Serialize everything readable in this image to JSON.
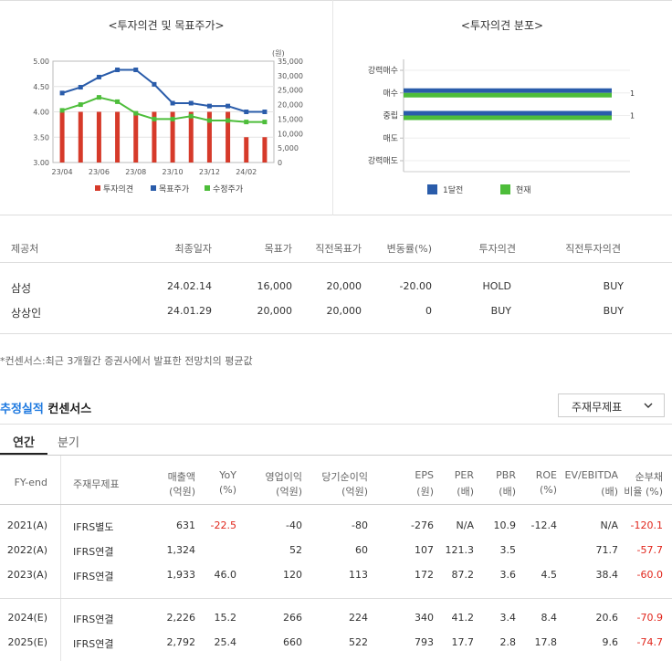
{
  "left_panel": {
    "title": "<투자의견 및 목표주가>"
  },
  "right_panel": {
    "title": "<투자의견 분포>"
  },
  "chart_data": [
    {
      "type": "bar+line",
      "title": "<투자의견 및 목표주가>",
      "categories": [
        "23/04",
        "",
        "23/06",
        "",
        "23/08",
        "",
        "23/10",
        "",
        "23/12",
        "",
        "24/02",
        ""
      ],
      "x_tick_labels": [
        "23/04",
        "23/06",
        "23/08",
        "23/10",
        "23/12",
        "24/02"
      ],
      "left_axis": {
        "ticks": [
          "5.00",
          "4.50",
          "4.00",
          "3.50",
          "3.00"
        ],
        "ylim": [
          3,
          5
        ]
      },
      "right_axis": {
        "unit": "(원)",
        "ticks": [
          "35,000",
          "30,000",
          "25,000",
          "20,000",
          "15,000",
          "10,000",
          "5,000",
          "0"
        ],
        "ylim": [
          0,
          35000
        ]
      },
      "series": [
        {
          "name": "투자의견",
          "kind": "bar",
          "axis": "left",
          "color": "#d63a2a",
          "values": [
            4,
            4,
            4,
            4,
            4,
            4,
            4,
            4,
            4,
            4,
            3.5,
            3.5
          ]
        },
        {
          "name": "목표주가",
          "kind": "line",
          "axis": "right",
          "color": "#2a5caa",
          "values": [
            24000,
            26000,
            29500,
            32000,
            32000,
            27000,
            20500,
            20500,
            19500,
            19500,
            17500,
            17500
          ]
        },
        {
          "name": "수정주가",
          "kind": "line",
          "axis": "right",
          "color": "#4dbd3a",
          "values": [
            18000,
            20000,
            22500,
            21000,
            17000,
            15000,
            15000,
            16000,
            14500,
            14500,
            14000,
            14000
          ]
        }
      ]
    },
    {
      "type": "bar",
      "title": "<투자의견 분포>",
      "orientation": "horizontal",
      "categories": [
        "강력매수",
        "매수",
        "중립",
        "매도",
        "강력매도"
      ],
      "series": [
        {
          "name": "1달전",
          "color": "#2a5caa",
          "values": [
            0,
            1,
            1,
            0,
            0
          ]
        },
        {
          "name": "현재",
          "color": "#4dbd3a",
          "values": [
            0,
            1,
            1,
            0,
            0
          ]
        }
      ],
      "value_labels": [
        "1",
        "1"
      ]
    }
  ],
  "legend_left": [
    "투자의견",
    "목표주가",
    "수정주가"
  ],
  "legend_right": [
    "1달전",
    "현재"
  ],
  "opinion_table": {
    "headers": [
      "제공처",
      "최종일자",
      "목표가",
      "직전목표가",
      "변동률(%)",
      "투자의견",
      "직전투자의견"
    ],
    "rows": [
      [
        "삼성",
        "24.02.14",
        "16,000",
        "20,000",
        "-20.00",
        "HOLD",
        "BUY"
      ],
      [
        "상상인",
        "24.01.29",
        "20,000",
        "20,000",
        "0",
        "BUY",
        "BUY"
      ]
    ]
  },
  "footnote": "*컨센서스:최근 3개월간 증권사에서 발표한 전망치의 평균값",
  "consensus": {
    "title_accent": "추정실적",
    "title_rest": "컨센서스",
    "dropdown": "주재무제표",
    "tabs": [
      "연간",
      "분기"
    ],
    "headers": [
      [
        "FY-end",
        ""
      ],
      [
        "주재무제표",
        ""
      ],
      [
        "매출액",
        "(억원)"
      ],
      [
        "YoY",
        "(%)"
      ],
      [
        "영업이익",
        "(억원)"
      ],
      [
        "당기순이익",
        "(억원)"
      ],
      [
        "EPS",
        "(원)"
      ],
      [
        "PER",
        "(배)"
      ],
      [
        "PBR",
        "(배)"
      ],
      [
        "ROE",
        "(%)"
      ],
      [
        "EV/EBITDA",
        "(배)"
      ],
      [
        "순부채",
        "비율 (%)"
      ]
    ],
    "rows": [
      [
        "2021(A)",
        "IFRS별도",
        "631",
        "-22.5",
        "-40",
        "-80",
        "-276",
        "N/A",
        "10.9",
        "-12.4",
        "N/A",
        "-120.1"
      ],
      [
        "2022(A)",
        "IFRS연결",
        "1,324",
        "",
        "52",
        "60",
        "107",
        "121.3",
        "3.5",
        "",
        "71.7",
        "-57.7"
      ],
      [
        "2023(A)",
        "IFRS연결",
        "1,933",
        "46.0",
        "120",
        "113",
        "172",
        "87.2",
        "3.6",
        "4.5",
        "38.4",
        "-60.0"
      ],
      [
        "2024(E)",
        "IFRS연결",
        "2,226",
        "15.2",
        "266",
        "224",
        "340",
        "41.2",
        "3.4",
        "8.4",
        "20.6",
        "-70.9"
      ],
      [
        "2025(E)",
        "IFRS연결",
        "2,792",
        "25.4",
        "660",
        "522",
        "793",
        "17.7",
        "2.8",
        "17.8",
        "9.6",
        "-74.7"
      ]
    ]
  }
}
